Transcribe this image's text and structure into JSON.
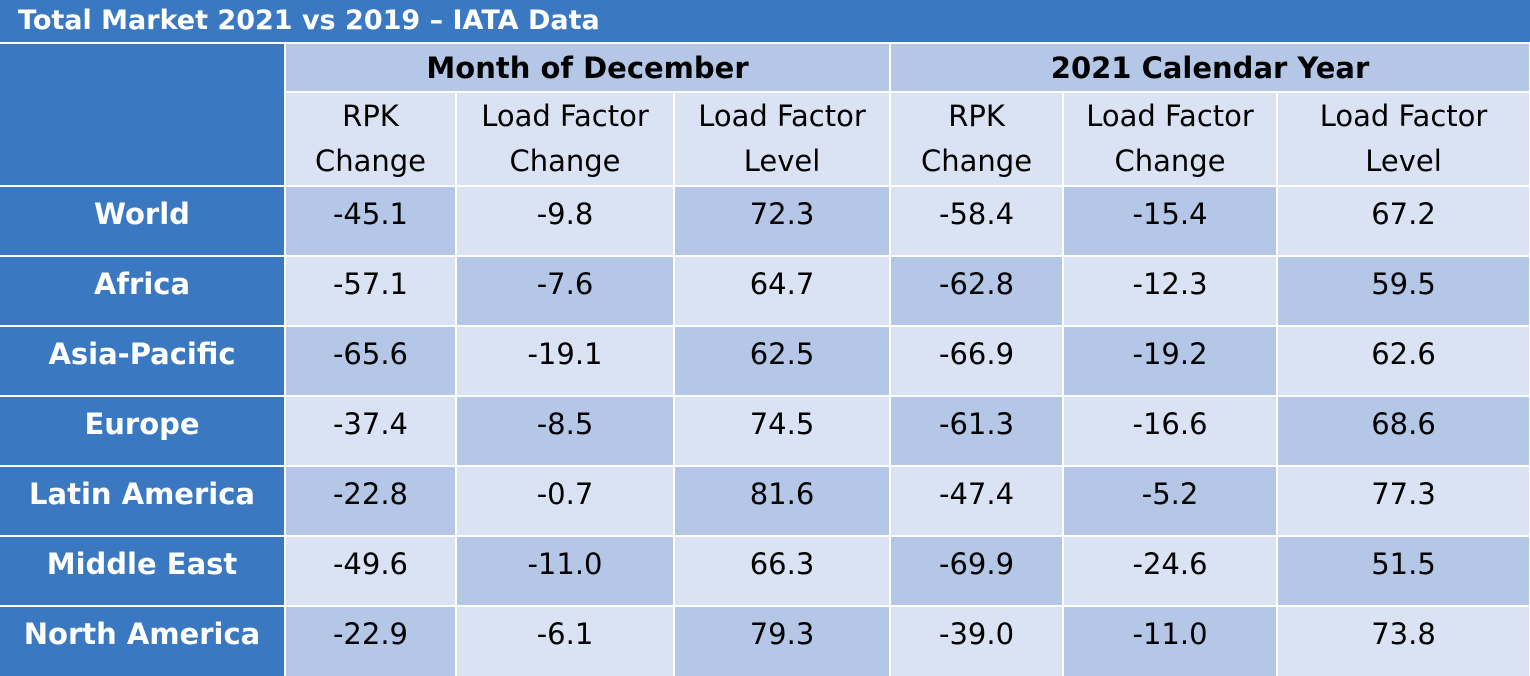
{
  "title": "Total Market 2021 vs 2019 – IATA Data",
  "groups": [
    "Month of December",
    "2021 Calendar Year"
  ],
  "columns": [
    "RPK\nChange",
    "Load Factor\nChange",
    "Load Factor\nLevel",
    "RPK\nChange",
    "Load Factor\nChange",
    "Load Factor\nLevel"
  ],
  "rows": [
    {
      "region": "World",
      "values": [
        "-45.1",
        "-9.8",
        "72.3",
        "-58.4",
        "-15.4",
        "67.2"
      ]
    },
    {
      "region": "Africa",
      "values": [
        "-57.1",
        "-7.6",
        "64.7",
        "-62.8",
        "-12.3",
        "59.5"
      ]
    },
    {
      "region": "Asia-Pacific",
      "values": [
        "-65.6",
        "-19.1",
        "62.5",
        "-66.9",
        "-19.2",
        "62.6"
      ]
    },
    {
      "region": "Europe",
      "values": [
        "-37.4",
        "-8.5",
        "74.5",
        "-61.3",
        "-16.6",
        "68.6"
      ]
    },
    {
      "region": "Latin America",
      "values": [
        "-22.8",
        "-0.7",
        "81.6",
        "-47.4",
        "-5.2",
        "77.3"
      ]
    },
    {
      "region": "Middle East",
      "values": [
        "-49.6",
        "-11.0",
        "66.3",
        "-69.9",
        "-24.6",
        "51.5"
      ]
    },
    {
      "region": "North America",
      "values": [
        "-22.9",
        "-6.1",
        "79.3",
        "-39.0",
        "-11.0",
        "73.8"
      ]
    }
  ],
  "colors": {
    "header_blue": "#3a78c2",
    "cell_dark": "#b4c7e7",
    "cell_light": "#dae3f3",
    "grid_line": "#ffffff"
  }
}
